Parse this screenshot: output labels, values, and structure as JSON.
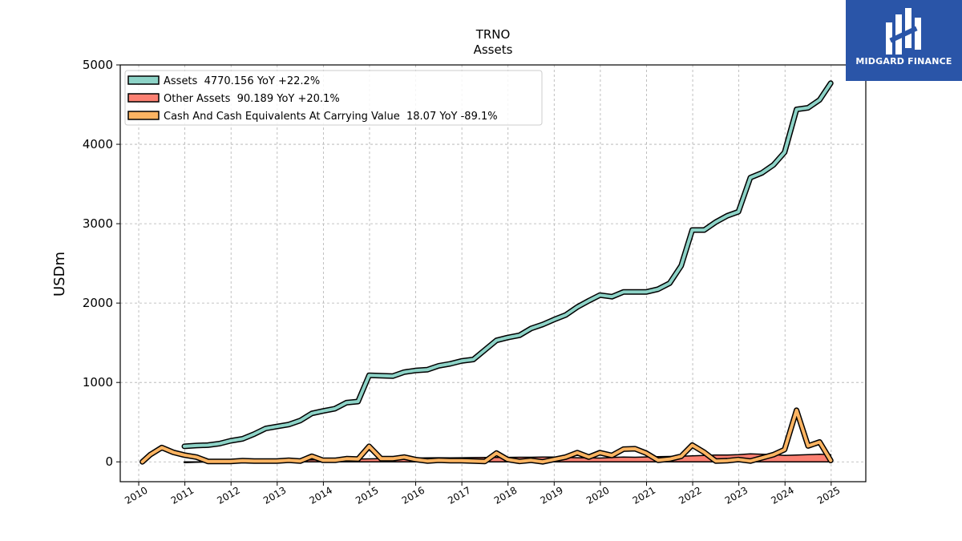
{
  "brand": {
    "name": "MIDGARD FINANCE",
    "color": "#2a55a8"
  },
  "chart_data": {
    "type": "line",
    "title": "TRNO",
    "subtitle": "Assets",
    "ylabel": "USDm",
    "xlabel": "",
    "xlim": [
      2009.6,
      2025.75
    ],
    "ylim": [
      -250,
      5000
    ],
    "x_ticks": [
      "2010",
      "2011",
      "2012",
      "2013",
      "2014",
      "2015",
      "2016",
      "2017",
      "2018",
      "2019",
      "2020",
      "2021",
      "2022",
      "2023",
      "2024",
      "2025"
    ],
    "y_ticks": [
      0,
      1000,
      2000,
      3000,
      4000,
      5000
    ],
    "grid": true,
    "legend_position": "top-left",
    "series": [
      {
        "name": "Assets  4770.156 YoY +22.2%",
        "color": "#8dd3c7",
        "fill": false,
        "points": [
          [
            2010.99,
            195
          ],
          [
            2011.25,
            205
          ],
          [
            2011.5,
            210
          ],
          [
            2011.75,
            230
          ],
          [
            2011.99,
            265
          ],
          [
            2012.25,
            290
          ],
          [
            2012.5,
            350
          ],
          [
            2012.75,
            420
          ],
          [
            2012.99,
            445
          ],
          [
            2013.25,
            470
          ],
          [
            2013.5,
            520
          ],
          [
            2013.75,
            610
          ],
          [
            2013.99,
            640
          ],
          [
            2014.25,
            670
          ],
          [
            2014.5,
            745
          ],
          [
            2014.75,
            760
          ],
          [
            2014.99,
            1090
          ],
          [
            2015.25,
            1085
          ],
          [
            2015.5,
            1080
          ],
          [
            2015.75,
            1130
          ],
          [
            2015.99,
            1150
          ],
          [
            2016.25,
            1160
          ],
          [
            2016.5,
            1210
          ],
          [
            2016.75,
            1235
          ],
          [
            2016.99,
            1270
          ],
          [
            2017.25,
            1290
          ],
          [
            2017.5,
            1410
          ],
          [
            2017.75,
            1530
          ],
          [
            2017.99,
            1565
          ],
          [
            2018.25,
            1595
          ],
          [
            2018.5,
            1680
          ],
          [
            2018.75,
            1730
          ],
          [
            2018.99,
            1790
          ],
          [
            2019.25,
            1850
          ],
          [
            2019.5,
            1950
          ],
          [
            2019.75,
            2030
          ],
          [
            2019.99,
            2100
          ],
          [
            2020.25,
            2080
          ],
          [
            2020.5,
            2140
          ],
          [
            2020.75,
            2140
          ],
          [
            2020.99,
            2140
          ],
          [
            2021.25,
            2175
          ],
          [
            2021.5,
            2250
          ],
          [
            2021.75,
            2470
          ],
          [
            2021.99,
            2920
          ],
          [
            2022.25,
            2920
          ],
          [
            2022.5,
            3020
          ],
          [
            2022.75,
            3100
          ],
          [
            2022.99,
            3150
          ],
          [
            2023.25,
            3580
          ],
          [
            2023.5,
            3640
          ],
          [
            2023.75,
            3740
          ],
          [
            2023.99,
            3900
          ],
          [
            2024.25,
            4440
          ],
          [
            2024.5,
            4460
          ],
          [
            2024.75,
            4560
          ],
          [
            2024.99,
            4770
          ]
        ]
      },
      {
        "name": "Other Assets  90.189 YoY +20.1%",
        "color": "#fb8072",
        "fill": true,
        "points": [
          [
            2010.99,
            -10
          ],
          [
            2011.25,
            -5
          ],
          [
            2011.5,
            -3
          ],
          [
            2011.75,
            0
          ],
          [
            2011.99,
            5
          ],
          [
            2012.25,
            10
          ],
          [
            2012.5,
            12
          ],
          [
            2012.75,
            15
          ],
          [
            2012.99,
            18
          ],
          [
            2013.25,
            20
          ],
          [
            2013.5,
            22
          ],
          [
            2013.75,
            25
          ],
          [
            2013.99,
            28
          ],
          [
            2014.25,
            30
          ],
          [
            2014.5,
            32
          ],
          [
            2014.75,
            35
          ],
          [
            2014.99,
            38
          ],
          [
            2015.25,
            40
          ],
          [
            2015.5,
            42
          ],
          [
            2015.75,
            45
          ],
          [
            2015.99,
            48
          ],
          [
            2016.25,
            50
          ],
          [
            2016.5,
            52
          ],
          [
            2016.75,
            50
          ],
          [
            2016.99,
            52
          ],
          [
            2017.25,
            54
          ],
          [
            2017.5,
            55
          ],
          [
            2017.75,
            56
          ],
          [
            2017.99,
            57
          ],
          [
            2018.25,
            58
          ],
          [
            2018.5,
            58
          ],
          [
            2018.75,
            60
          ],
          [
            2018.99,
            60
          ],
          [
            2019.25,
            55
          ],
          [
            2019.5,
            52
          ],
          [
            2019.75,
            50
          ],
          [
            2019.99,
            48
          ],
          [
            2020.25,
            55
          ],
          [
            2020.5,
            60
          ],
          [
            2020.75,
            58
          ],
          [
            2020.99,
            62
          ],
          [
            2021.25,
            65
          ],
          [
            2021.5,
            68
          ],
          [
            2021.75,
            70
          ],
          [
            2021.99,
            75
          ],
          [
            2022.25,
            80
          ],
          [
            2022.5,
            85
          ],
          [
            2022.75,
            85
          ],
          [
            2022.99,
            90
          ],
          [
            2023.25,
            100
          ],
          [
            2023.5,
            95
          ],
          [
            2023.75,
            90
          ],
          [
            2023.99,
            80
          ],
          [
            2024.25,
            85
          ],
          [
            2024.5,
            90
          ],
          [
            2024.75,
            95
          ],
          [
            2024.99,
            90
          ]
        ]
      },
      {
        "name": "Cash And Cash Equivalents At Carrying Value  18.07 YoY -89.1%",
        "color": "#fdb462",
        "fill": false,
        "points": [
          [
            2010.08,
            0
          ],
          [
            2010.25,
            90
          ],
          [
            2010.5,
            180
          ],
          [
            2010.75,
            120
          ],
          [
            2010.99,
            85
          ],
          [
            2011.25,
            60
          ],
          [
            2011.5,
            5
          ],
          [
            2011.75,
            5
          ],
          [
            2011.99,
            5
          ],
          [
            2012.25,
            15
          ],
          [
            2012.5,
            10
          ],
          [
            2012.75,
            10
          ],
          [
            2012.99,
            10
          ],
          [
            2013.25,
            20
          ],
          [
            2013.5,
            10
          ],
          [
            2013.75,
            70
          ],
          [
            2013.99,
            20
          ],
          [
            2014.25,
            20
          ],
          [
            2014.5,
            40
          ],
          [
            2014.75,
            35
          ],
          [
            2014.99,
            195
          ],
          [
            2015.25,
            40
          ],
          [
            2015.5,
            40
          ],
          [
            2015.75,
            60
          ],
          [
            2015.99,
            30
          ],
          [
            2016.25,
            10
          ],
          [
            2016.5,
            20
          ],
          [
            2016.75,
            15
          ],
          [
            2016.99,
            15
          ],
          [
            2017.25,
            10
          ],
          [
            2017.5,
            5
          ],
          [
            2017.75,
            110
          ],
          [
            2017.99,
            30
          ],
          [
            2018.25,
            5
          ],
          [
            2018.5,
            20
          ],
          [
            2018.75,
            0
          ],
          [
            2018.99,
            30
          ],
          [
            2019.25,
            60
          ],
          [
            2019.5,
            115
          ],
          [
            2019.75,
            60
          ],
          [
            2019.99,
            115
          ],
          [
            2020.25,
            80
          ],
          [
            2020.5,
            160
          ],
          [
            2020.75,
            165
          ],
          [
            2020.99,
            110
          ],
          [
            2021.25,
            20
          ],
          [
            2021.5,
            35
          ],
          [
            2021.75,
            70
          ],
          [
            2021.99,
            210
          ],
          [
            2022.25,
            120
          ],
          [
            2022.5,
            10
          ],
          [
            2022.75,
            15
          ],
          [
            2022.99,
            30
          ],
          [
            2023.25,
            10
          ],
          [
            2023.5,
            50
          ],
          [
            2023.75,
            90
          ],
          [
            2023.99,
            155
          ],
          [
            2024.25,
            650
          ],
          [
            2024.5,
            200
          ],
          [
            2024.75,
            250
          ],
          [
            2024.99,
            18
          ]
        ]
      }
    ]
  }
}
